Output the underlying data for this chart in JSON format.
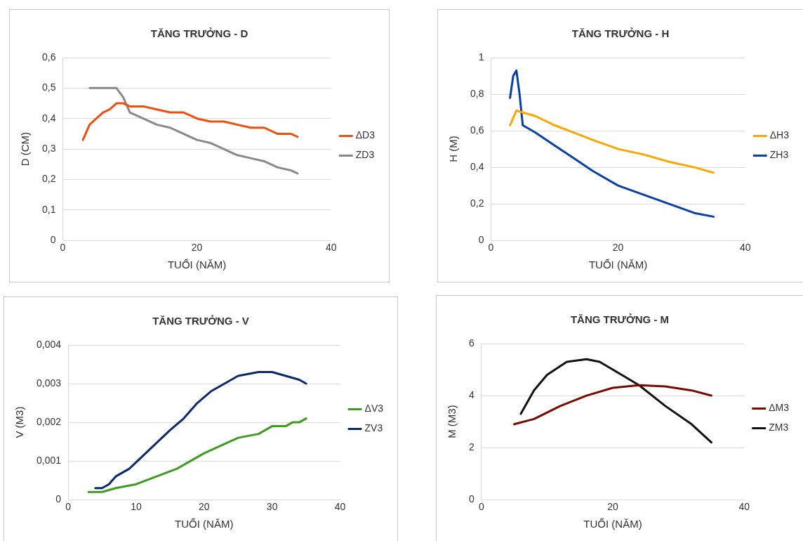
{
  "chart_data": [
    {
      "type": "line",
      "title": "TĂNG TRƯỞNG - D",
      "xlabel": "TUỔI (NĂM)",
      "ylabel": "D (CM)",
      "xlim": [
        0,
        40
      ],
      "xticks": [
        0,
        20,
        40
      ],
      "ylim": [
        0,
        0.6
      ],
      "yticks": [
        0,
        {
          "value": 0.1,
          "label": "0,1"
        },
        {
          "value": 0.2,
          "label": "0,2"
        },
        {
          "value": 0.3,
          "label": "0,3"
        },
        {
          "value": 0.4,
          "label": "0,4"
        },
        {
          "value": 0.5,
          "label": "0,5"
        },
        {
          "value": 0.6,
          "label": "0,6"
        }
      ],
      "grid": "y",
      "legend": "right",
      "marker": "none",
      "line_style": "solid",
      "series": [
        {
          "name": "ΔD3",
          "color": "#f04e0c",
          "x": [
            3,
            4,
            5,
            6,
            7,
            8,
            9,
            10,
            12,
            14,
            16,
            18,
            20,
            22,
            24,
            26,
            28,
            30,
            32,
            34,
            35
          ],
          "values": [
            0.33,
            0.38,
            0.4,
            0.42,
            0.43,
            0.45,
            0.45,
            0.44,
            0.44,
            0.43,
            0.42,
            0.42,
            0.4,
            0.39,
            0.39,
            0.38,
            0.37,
            0.37,
            0.35,
            0.35,
            0.34
          ]
        },
        {
          "name": "ZD3",
          "color": "#898989",
          "x": [
            4,
            6,
            8,
            9,
            10,
            11,
            14,
            16,
            20,
            22,
            26,
            28,
            30,
            32,
            34,
            35
          ],
          "values": [
            0.5,
            0.5,
            0.5,
            0.47,
            0.42,
            0.41,
            0.38,
            0.37,
            0.33,
            0.32,
            0.28,
            0.27,
            0.26,
            0.24,
            0.23,
            0.22
          ]
        }
      ]
    },
    {
      "type": "line",
      "title": "TĂNG TRƯỞNG - H",
      "xlabel": "TUỔI (NĂM)",
      "ylabel": "H (M)",
      "xlim": [
        0,
        40
      ],
      "xticks": [
        0,
        20,
        40
      ],
      "ylim": [
        0,
        1
      ],
      "yticks": [
        0,
        {
          "value": 0.2,
          "label": "0,2"
        },
        {
          "value": 0.4,
          "label": "0,4"
        },
        {
          "value": 0.6,
          "label": "0,6"
        },
        {
          "value": 0.8,
          "label": "0,8"
        },
        1
      ],
      "grid": "y",
      "legend": "right",
      "marker": "none",
      "line_style": "solid",
      "series": [
        {
          "name": "ΔH3",
          "color": "#ffa500",
          "x": [
            3,
            4,
            5,
            7,
            10,
            13,
            16,
            20,
            24,
            28,
            32,
            35
          ],
          "values": [
            0.63,
            0.71,
            0.7,
            0.68,
            0.63,
            0.59,
            0.55,
            0.5,
            0.47,
            0.43,
            0.4,
            0.37
          ]
        },
        {
          "name": "ZH3",
          "color": "#0b3fa8",
          "x": [
            3,
            3.5,
            4,
            4.5,
            5,
            7,
            10,
            13,
            16,
            20,
            24,
            28,
            32,
            35
          ],
          "values": [
            0.78,
            0.9,
            0.93,
            0.8,
            0.63,
            0.59,
            0.52,
            0.45,
            0.38,
            0.3,
            0.25,
            0.2,
            0.15,
            0.13
          ]
        }
      ]
    },
    {
      "type": "line",
      "title": "TĂNG TRƯỞNG - V",
      "xlabel": "TUỔI (NĂM)",
      "ylabel": "V (M3)",
      "xlim": [
        0,
        40
      ],
      "xticks": [
        0,
        10,
        20,
        30,
        40
      ],
      "ylim": [
        0,
        0.004
      ],
      "yticks": [
        0,
        {
          "value": 0.001,
          "label": "0,001"
        },
        {
          "value": 0.002,
          "label": "0,002"
        },
        {
          "value": 0.003,
          "label": "0,003"
        },
        {
          "value": 0.004,
          "label": "0,004"
        }
      ],
      "grid": "y",
      "legend": "right",
      "marker": "none",
      "line_style": "solid",
      "series": [
        {
          "name": "ΔV3",
          "color": "#3f9c1e",
          "x": [
            3,
            5,
            7,
            10,
            13,
            16,
            20,
            25,
            28,
            30,
            32,
            33,
            34,
            35
          ],
          "values": [
            0.0002,
            0.0002,
            0.0003,
            0.0004,
            0.0006,
            0.0008,
            0.0012,
            0.0016,
            0.0017,
            0.0019,
            0.0019,
            0.002,
            0.002,
            0.0021
          ]
        },
        {
          "name": "ZV3",
          "color": "#0b2a6b",
          "x": [
            4,
            5,
            6,
            7,
            9,
            12,
            15,
            17,
            19,
            21,
            23,
            25,
            28,
            30,
            32,
            34,
            35
          ],
          "values": [
            0.0003,
            0.0003,
            0.0004,
            0.0006,
            0.0008,
            0.0013,
            0.0018,
            0.0021,
            0.0025,
            0.0028,
            0.003,
            0.0032,
            0.0033,
            0.0033,
            0.0032,
            0.0031,
            0.003
          ]
        }
      ]
    },
    {
      "type": "line",
      "title": "TĂNG TRƯỞNG - M",
      "xlabel": "TUỔI (NĂM)",
      "ylabel": "M (M3)",
      "xlim": [
        0,
        40
      ],
      "xticks": [
        0,
        20,
        40
      ],
      "ylim": [
        0,
        6
      ],
      "yticks": [
        0,
        2,
        4,
        6
      ],
      "grid": "y",
      "legend": "right",
      "marker": "none",
      "line_style": "solid",
      "series": [
        {
          "name": "ΔM3",
          "color": "#7a0a00",
          "x": [
            5,
            8,
            12,
            16,
            20,
            24,
            28,
            32,
            35
          ],
          "values": [
            2.9,
            3.1,
            3.6,
            4.0,
            4.3,
            4.4,
            4.35,
            4.2,
            4.0
          ]
        },
        {
          "name": "ZM3",
          "color": "#111111",
          "x": [
            6,
            8,
            10,
            13,
            16,
            18,
            20,
            24,
            28,
            32,
            35
          ],
          "values": [
            3.3,
            4.2,
            4.8,
            5.3,
            5.4,
            5.3,
            5.0,
            4.4,
            3.6,
            2.9,
            2.2
          ]
        }
      ]
    }
  ]
}
